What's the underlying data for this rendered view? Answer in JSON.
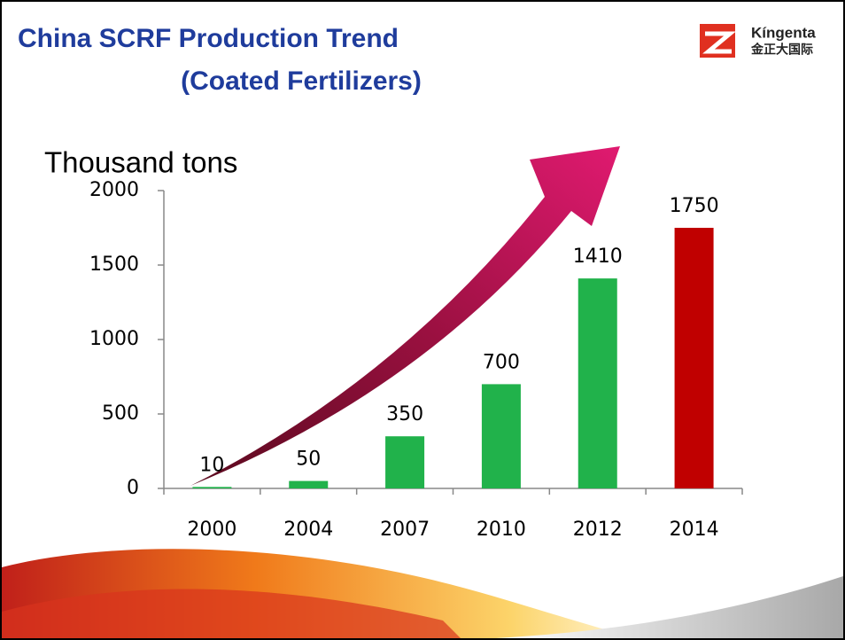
{
  "chart_data": {
    "type": "bar",
    "title": "China SCRF Production Trend",
    "subtitle": "(Coated Fertilizers)",
    "y_label": "Thousand tons",
    "categories": [
      "2000",
      "2004",
      "2007",
      "2010",
      "2012",
      "2014"
    ],
    "values": [
      10,
      50,
      350,
      700,
      1410,
      1750
    ],
    "colors": [
      "#21b24b",
      "#21b24b",
      "#21b24b",
      "#21b24b",
      "#21b24b",
      "#c00000"
    ],
    "ylim": [
      0,
      2000
    ],
    "yticks": [
      0,
      500,
      1000,
      1500,
      2000
    ],
    "grid": false
  },
  "logo": {
    "name": "Kíngenta",
    "name_cn": "金正大国际"
  }
}
